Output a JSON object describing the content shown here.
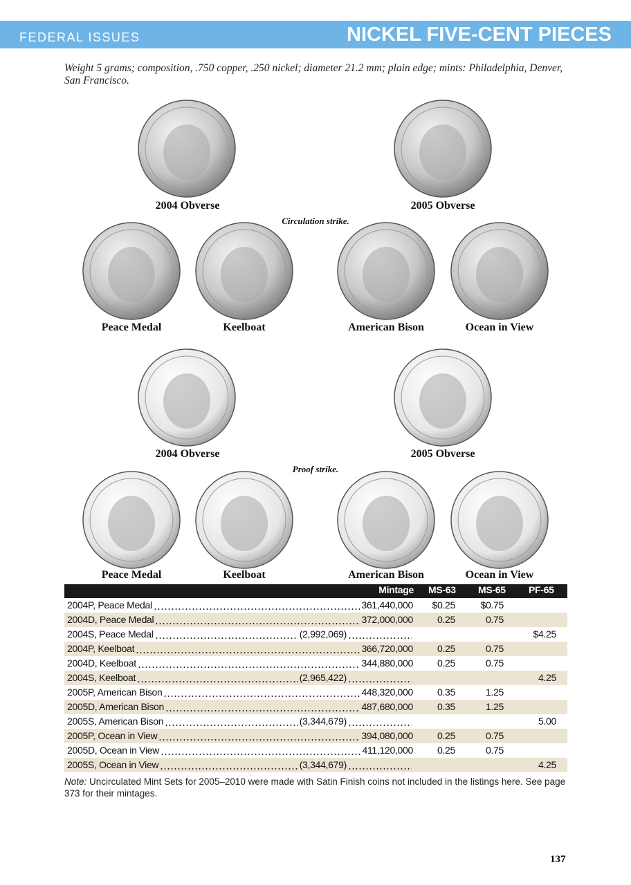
{
  "header": {
    "section": "FEDERAL ISSUES",
    "title": "NICKEL FIVE-CENT PIECES"
  },
  "intro": "Weight 5 grams; composition, .750 copper, .250 nickel; diameter 21.2 mm; plain edge; mints: Philadelphia, Denver, San Francisco.",
  "circulation": {
    "obverses": [
      "2004 Obverse",
      "2005 Obverse"
    ],
    "label": "Circulation strike.",
    "reverses": [
      "Peace Medal",
      "Keelboat",
      "American Bison",
      "Ocean in View"
    ]
  },
  "proof": {
    "obverses": [
      "2004 Obverse",
      "2005 Obverse"
    ],
    "label": "Proof strike.",
    "reverses": [
      "Peace Medal",
      "Keelboat",
      "American Bison",
      "Ocean in View"
    ]
  },
  "table": {
    "columns": [
      "Mintage",
      "MS-63",
      "MS-65",
      "PF-65"
    ],
    "rows": [
      {
        "name": "2004P, Peace Medal",
        "mintage": "361,440,000",
        "ms63": "$0.25",
        "ms65": "$0.75"
      },
      {
        "name": "2004D, Peace Medal",
        "mintage": "372,000,000",
        "ms63": "0.25",
        "ms65": "0.75"
      },
      {
        "name": "2004S, Peace Medal",
        "mintage": "(2,992,069)",
        "pf65": "$4.25"
      },
      {
        "name": "2004P, Keelboat",
        "mintage": "366,720,000",
        "ms63": "0.25",
        "ms65": "0.75"
      },
      {
        "name": "2004D, Keelboat",
        "mintage": "344,880,000",
        "ms63": "0.25",
        "ms65": "0.75"
      },
      {
        "name": "2004S, Keelboat",
        "mintage": "(2,965,422)",
        "pf65": "4.25"
      },
      {
        "name": "2005P, American Bison",
        "mintage": "448,320,000",
        "ms63": "0.35",
        "ms65": "1.25"
      },
      {
        "name": "2005D, American Bison",
        "mintage": "487,680,000",
        "ms63": "0.35",
        "ms65": "1.25"
      },
      {
        "name": "2005S, American Bison",
        "mintage": "(3,344,679)",
        "pf65": "5.00"
      },
      {
        "name": "2005P, Ocean in View",
        "mintage": "394,080,000",
        "ms63": "0.25",
        "ms65": "0.75"
      },
      {
        "name": "2005D, Ocean in View",
        "mintage": "411,120,000",
        "ms63": "0.25",
        "ms65": "0.75"
      },
      {
        "name": "2005S, Ocean in View",
        "mintage": "(3,344,679)",
        "pf65": "4.25"
      }
    ]
  },
  "note": {
    "lead": "Note:",
    "text": " Uncirculated Mint Sets for 2005–2010 were made with Satin Finish coins not included in the listings here. See page 373 for their mintages."
  },
  "page_number": "137"
}
